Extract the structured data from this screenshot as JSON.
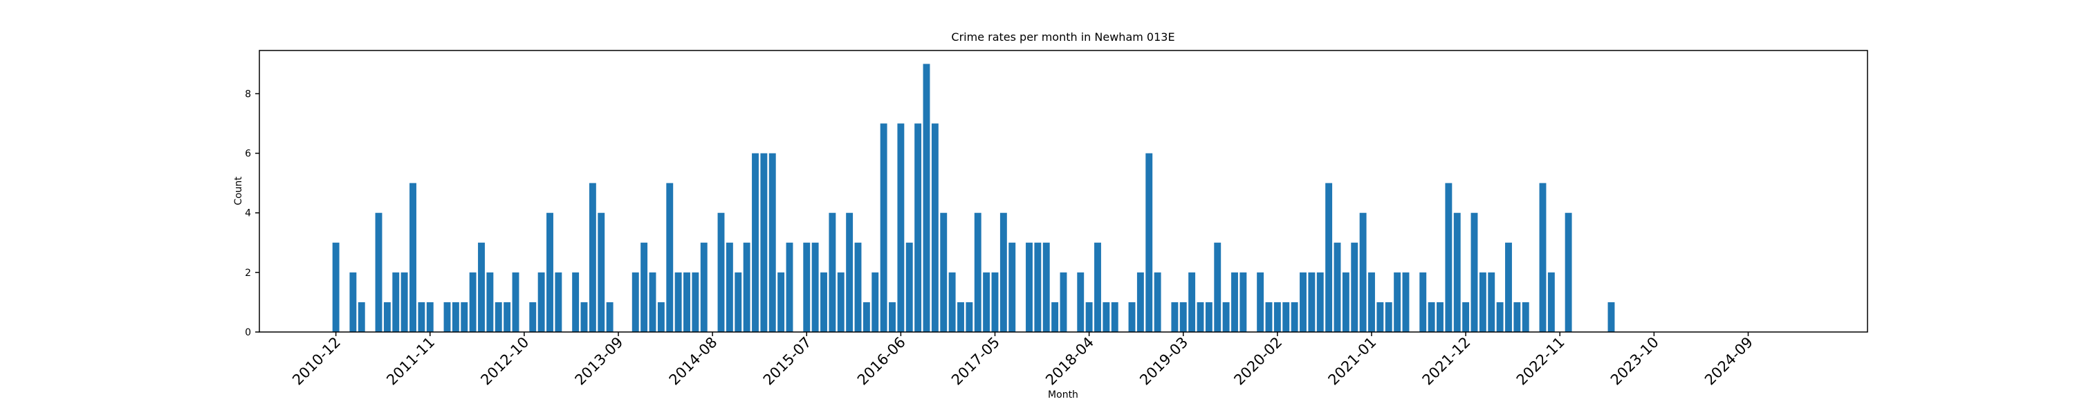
{
  "chart_data": {
    "type": "bar",
    "title": "Crime rates per month in Newham 013E",
    "xlabel": "Month",
    "ylabel": "Count",
    "color": "#1f77b4",
    "categories": [
      "2010-12",
      null,
      null,
      null,
      null,
      null,
      null,
      null,
      null,
      null,
      null,
      "2011-11",
      null,
      null,
      null,
      null,
      null,
      null,
      null,
      null,
      null,
      null,
      "2012-10",
      null,
      null,
      null,
      null,
      null,
      null,
      null,
      null,
      null,
      null,
      "2013-09",
      null,
      null,
      null,
      null,
      null,
      null,
      null,
      null,
      null,
      null,
      "2014-08",
      null,
      null,
      null,
      null,
      null,
      null,
      null,
      null,
      null,
      null,
      "2015-07",
      null,
      null,
      null,
      null,
      null,
      null,
      null,
      null,
      null,
      null,
      "2016-06",
      null,
      null,
      null,
      null,
      null,
      null,
      null,
      null,
      null,
      null,
      "2017-05",
      null,
      null,
      null,
      null,
      null,
      null,
      null,
      null,
      null,
      null,
      "2018-04",
      null,
      null,
      null,
      null,
      null,
      null,
      null,
      null,
      null,
      null,
      "2019-03",
      null,
      null,
      null,
      null,
      null,
      null,
      null,
      null,
      null,
      null,
      "2020-02",
      null,
      null,
      null,
      null,
      null,
      null,
      null,
      null,
      null,
      null,
      "2021-01",
      null,
      null,
      null,
      null,
      null,
      null,
      null,
      null,
      null,
      null,
      "2021-12",
      null,
      null,
      null,
      null,
      null,
      null,
      null,
      null,
      null,
      null,
      "2022-11",
      null,
      null,
      null,
      null,
      null,
      null,
      null,
      null,
      null,
      null,
      "2023-10",
      null,
      null,
      null,
      null,
      null,
      null,
      null,
      null,
      null,
      null,
      "2024-09",
      null,
      null,
      null,
      null,
      null
    ],
    "values": [
      3,
      0,
      2,
      1,
      0,
      4,
      1,
      2,
      2,
      5,
      1,
      1,
      0,
      1,
      1,
      1,
      2,
      3,
      2,
      1,
      1,
      2,
      0,
      1,
      2,
      4,
      2,
      0,
      2,
      1,
      5,
      4,
      1,
      0,
      0,
      2,
      3,
      2,
      1,
      5,
      2,
      2,
      2,
      3,
      0,
      4,
      3,
      2,
      3,
      6,
      6,
      6,
      2,
      3,
      0,
      3,
      3,
      2,
      4,
      2,
      4,
      3,
      1,
      2,
      7,
      1,
      7,
      3,
      7,
      9,
      7,
      4,
      2,
      1,
      1,
      4,
      2,
      2,
      4,
      3,
      0,
      3,
      3,
      3,
      1,
      2,
      0,
      2,
      1,
      3,
      1,
      1,
      0,
      1,
      2,
      6,
      2,
      0,
      1,
      1,
      2,
      1,
      1,
      3,
      1,
      2,
      2,
      0,
      2,
      1,
      1,
      1,
      1,
      2,
      2,
      2,
      5,
      3,
      2,
      3,
      4,
      2,
      1,
      1,
      2,
      2,
      0,
      2,
      1,
      1,
      5,
      4,
      1,
      4,
      2,
      2,
      1,
      3,
      1,
      1,
      0,
      5,
      2,
      0,
      4,
      0,
      0,
      0,
      0,
      1,
      0,
      0,
      0,
      0,
      0,
      0,
      0,
      0,
      0,
      0,
      0,
      0,
      0,
      0,
      0,
      0,
      0,
      0,
      0,
      0,
      0
    ],
    "ylim": [
      0,
      9.45
    ],
    "yticks": [
      0,
      2,
      4,
      6,
      8
    ]
  }
}
